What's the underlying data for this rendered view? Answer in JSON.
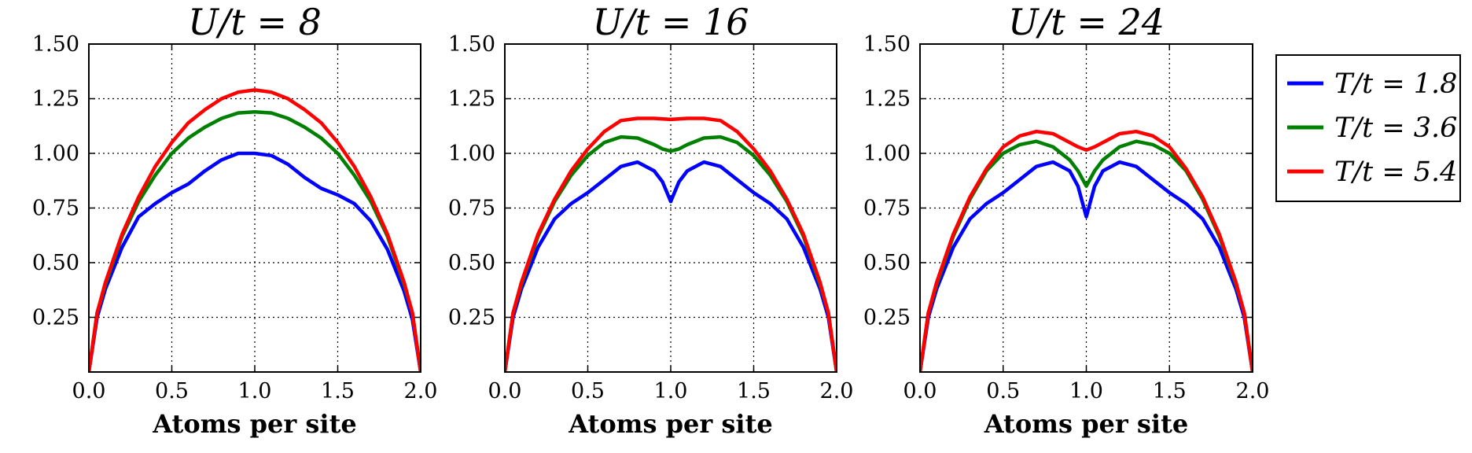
{
  "chart_data": [
    {
      "type": "line",
      "title": "U/t = 8",
      "xlabel": "Atoms per site",
      "ylabel": "",
      "xlim": [
        0.0,
        2.0
      ],
      "ylim": [
        0.0,
        1.5
      ],
      "xticks": [
        "0.0",
        "0.5",
        "1.0",
        "1.5",
        "2.0"
      ],
      "yticks": [
        "0.25",
        "0.50",
        "0.75",
        "1.00",
        "1.25",
        "1.50"
      ],
      "grid": true,
      "series": [
        {
          "name": "T/t = 1.8",
          "color": "#0000ff",
          "x": [
            0,
            0.05,
            0.1,
            0.2,
            0.3,
            0.4,
            0.5,
            0.6,
            0.7,
            0.8,
            0.9,
            1.0,
            1.1,
            1.2,
            1.3,
            1.4,
            1.5,
            1.6,
            1.7,
            1.8,
            1.9,
            1.95,
            2.0
          ],
          "y": [
            0.0,
            0.25,
            0.38,
            0.57,
            0.71,
            0.77,
            0.82,
            0.86,
            0.92,
            0.97,
            1.0,
            1.0,
            0.99,
            0.95,
            0.89,
            0.84,
            0.81,
            0.77,
            0.69,
            0.56,
            0.37,
            0.24,
            0.0
          ]
        },
        {
          "name": "T/t = 3.6",
          "color": "#008000",
          "x": [
            0,
            0.05,
            0.1,
            0.2,
            0.3,
            0.4,
            0.5,
            0.6,
            0.7,
            0.8,
            0.9,
            1.0,
            1.1,
            1.2,
            1.3,
            1.4,
            1.5,
            1.6,
            1.7,
            1.8,
            1.9,
            1.95,
            2.0
          ],
          "y": [
            0.0,
            0.27,
            0.4,
            0.62,
            0.78,
            0.9,
            1.0,
            1.07,
            1.12,
            1.16,
            1.185,
            1.19,
            1.185,
            1.16,
            1.12,
            1.07,
            1.0,
            0.9,
            0.78,
            0.62,
            0.4,
            0.27,
            0.0
          ]
        },
        {
          "name": "T/t = 5.4",
          "color": "#ff0000",
          "x": [
            0,
            0.05,
            0.1,
            0.2,
            0.3,
            0.4,
            0.5,
            0.6,
            0.7,
            0.8,
            0.9,
            1.0,
            1.1,
            1.2,
            1.3,
            1.4,
            1.5,
            1.6,
            1.7,
            1.8,
            1.9,
            1.95,
            2.0
          ],
          "y": [
            0.0,
            0.27,
            0.41,
            0.63,
            0.8,
            0.94,
            1.05,
            1.14,
            1.2,
            1.25,
            1.28,
            1.29,
            1.28,
            1.25,
            1.2,
            1.14,
            1.05,
            0.94,
            0.8,
            0.63,
            0.41,
            0.27,
            0.0
          ]
        }
      ]
    },
    {
      "type": "line",
      "title": "U/t = 16",
      "xlabel": "Atoms per site",
      "ylabel": "",
      "xlim": [
        0.0,
        2.0
      ],
      "ylim": [
        0.0,
        1.5
      ],
      "xticks": [
        "0.0",
        "0.5",
        "1.0",
        "1.5",
        "2.0"
      ],
      "yticks": [
        "0.25",
        "0.50",
        "0.75",
        "1.00",
        "1.25",
        "1.50"
      ],
      "grid": true,
      "series": [
        {
          "name": "T/t = 1.8",
          "color": "#0000ff",
          "x": [
            0,
            0.05,
            0.1,
            0.2,
            0.3,
            0.4,
            0.5,
            0.6,
            0.7,
            0.8,
            0.9,
            0.95,
            1.0,
            1.05,
            1.1,
            1.2,
            1.3,
            1.4,
            1.5,
            1.6,
            1.7,
            1.8,
            1.9,
            1.95,
            2.0
          ],
          "y": [
            0.0,
            0.25,
            0.38,
            0.57,
            0.7,
            0.77,
            0.82,
            0.88,
            0.94,
            0.96,
            0.92,
            0.87,
            0.78,
            0.87,
            0.92,
            0.96,
            0.94,
            0.88,
            0.82,
            0.77,
            0.7,
            0.57,
            0.38,
            0.25,
            0.0
          ]
        },
        {
          "name": "T/t = 3.6",
          "color": "#008000",
          "x": [
            0,
            0.05,
            0.1,
            0.2,
            0.3,
            0.4,
            0.5,
            0.6,
            0.7,
            0.8,
            0.9,
            0.95,
            1.0,
            1.05,
            1.1,
            1.2,
            1.3,
            1.4,
            1.5,
            1.6,
            1.7,
            1.8,
            1.9,
            1.95,
            2.0
          ],
          "y": [
            0.0,
            0.27,
            0.4,
            0.62,
            0.78,
            0.9,
            0.99,
            1.05,
            1.075,
            1.07,
            1.04,
            1.02,
            1.01,
            1.02,
            1.04,
            1.07,
            1.075,
            1.05,
            0.99,
            0.9,
            0.78,
            0.62,
            0.4,
            0.27,
            0.0
          ]
        },
        {
          "name": "T/t = 5.4",
          "color": "#ff0000",
          "x": [
            0,
            0.05,
            0.1,
            0.2,
            0.3,
            0.4,
            0.5,
            0.6,
            0.7,
            0.8,
            0.9,
            1.0,
            1.1,
            1.2,
            1.3,
            1.4,
            1.5,
            1.6,
            1.7,
            1.8,
            1.9,
            1.95,
            2.0
          ],
          "y": [
            0.0,
            0.27,
            0.41,
            0.63,
            0.79,
            0.92,
            1.02,
            1.1,
            1.15,
            1.16,
            1.16,
            1.155,
            1.16,
            1.16,
            1.15,
            1.1,
            1.02,
            0.92,
            0.79,
            0.63,
            0.41,
            0.27,
            0.0
          ]
        }
      ]
    },
    {
      "type": "line",
      "title": "U/t = 24",
      "xlabel": "Atoms per site",
      "ylabel": "",
      "xlim": [
        0.0,
        2.0
      ],
      "ylim": [
        0.0,
        1.5
      ],
      "xticks": [
        "0.0",
        "0.5",
        "1.0",
        "1.5",
        "2.0"
      ],
      "yticks": [
        "0.25",
        "0.50",
        "0.75",
        "1.00",
        "1.25",
        "1.50"
      ],
      "grid": true,
      "series": [
        {
          "name": "T/t = 1.8",
          "color": "#0000ff",
          "x": [
            0,
            0.05,
            0.1,
            0.2,
            0.3,
            0.4,
            0.5,
            0.6,
            0.7,
            0.8,
            0.9,
            0.95,
            1.0,
            1.05,
            1.1,
            1.2,
            1.3,
            1.4,
            1.5,
            1.6,
            1.7,
            1.8,
            1.9,
            1.95,
            2.0
          ],
          "y": [
            0.0,
            0.25,
            0.38,
            0.57,
            0.7,
            0.77,
            0.82,
            0.88,
            0.94,
            0.96,
            0.92,
            0.85,
            0.71,
            0.85,
            0.92,
            0.96,
            0.94,
            0.88,
            0.82,
            0.77,
            0.7,
            0.57,
            0.38,
            0.25,
            0.0
          ]
        },
        {
          "name": "T/t = 3.6",
          "color": "#008000",
          "x": [
            0,
            0.05,
            0.1,
            0.2,
            0.3,
            0.4,
            0.5,
            0.6,
            0.7,
            0.8,
            0.9,
            0.95,
            1.0,
            1.05,
            1.1,
            1.2,
            1.3,
            1.4,
            1.5,
            1.6,
            1.7,
            1.8,
            1.9,
            1.95,
            2.0
          ],
          "y": [
            0.0,
            0.27,
            0.4,
            0.62,
            0.79,
            0.92,
            1.0,
            1.04,
            1.055,
            1.03,
            0.97,
            0.92,
            0.85,
            0.92,
            0.97,
            1.03,
            1.055,
            1.04,
            1.0,
            0.92,
            0.79,
            0.62,
            0.4,
            0.27,
            0.0
          ]
        },
        {
          "name": "T/t = 5.4",
          "color": "#ff0000",
          "x": [
            0,
            0.05,
            0.1,
            0.2,
            0.3,
            0.4,
            0.5,
            0.6,
            0.7,
            0.8,
            0.9,
            0.95,
            1.0,
            1.05,
            1.1,
            1.2,
            1.3,
            1.4,
            1.5,
            1.6,
            1.7,
            1.8,
            1.9,
            1.95,
            2.0
          ],
          "y": [
            0.0,
            0.27,
            0.41,
            0.63,
            0.8,
            0.93,
            1.03,
            1.08,
            1.1,
            1.09,
            1.05,
            1.03,
            1.015,
            1.03,
            1.05,
            1.09,
            1.1,
            1.08,
            1.03,
            0.93,
            0.8,
            0.63,
            0.41,
            0.27,
            0.0
          ]
        }
      ]
    }
  ],
  "legend": {
    "placement": "right",
    "entries": [
      {
        "label": "T/t = 1.8",
        "color": "#0000ff"
      },
      {
        "label": "T/t = 3.6",
        "color": "#008000"
      },
      {
        "label": "T/t = 5.4",
        "color": "#ff0000"
      }
    ]
  }
}
